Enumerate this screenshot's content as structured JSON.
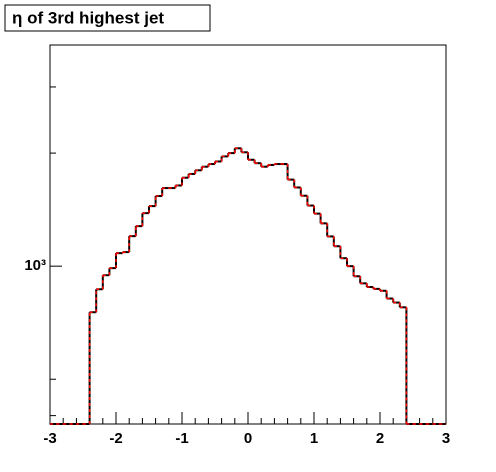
{
  "chart_data": {
    "type": "histogram",
    "title": "η of 3rd highest jet",
    "bins": [
      -3.0,
      -2.9,
      -2.8,
      -2.7,
      -2.6,
      -2.5,
      -2.4,
      -2.3,
      -2.2,
      -2.1,
      -2.0,
      -1.9,
      -1.8,
      -1.7,
      -1.6,
      -1.5,
      -1.4,
      -1.3,
      -1.2,
      -1.1,
      -1.0,
      -0.9,
      -0.8,
      -0.7,
      -0.6,
      -0.5,
      -0.4,
      -0.3,
      -0.2,
      -0.1,
      0.0,
      0.1,
      0.2,
      0.3,
      0.4,
      0.5,
      0.6,
      0.7,
      0.8,
      0.9,
      1.0,
      1.1,
      1.2,
      1.3,
      1.4,
      1.5,
      1.6,
      1.7,
      1.8,
      1.9,
      2.0,
      2.1,
      2.2,
      2.3,
      2.4,
      2.5,
      2.6,
      2.7,
      2.8,
      2.9,
      3.0
    ],
    "values": [
      0,
      0,
      0,
      0,
      0,
      0,
      754,
      868,
      946,
      988,
      1083,
      1090,
      1202,
      1278,
      1384,
      1445,
      1537,
      1614,
      1614,
      1640,
      1720,
      1760,
      1800,
      1840,
      1870,
      1900,
      1960,
      2000,
      2060,
      2010,
      1920,
      1880,
      1840,
      1860,
      1870,
      1870,
      1700,
      1620,
      1540,
      1450,
      1380,
      1300,
      1200,
      1130,
      1050,
      1000,
      940,
      900,
      880,
      870,
      860,
      820,
      800,
      777,
      0,
      0,
      0,
      0,
      0,
      0
    ],
    "color": "#000000",
    "dash_color": "#ff0000",
    "xlim": [
      -3,
      3
    ],
    "xticks": [
      -3,
      -2,
      -1,
      0,
      1,
      2,
      3
    ],
    "ylim": [
      380,
      3880
    ],
    "log_y": true,
    "yticks": [
      {
        "value": 1000,
        "label": "10³"
      }
    ],
    "yminorticks": [
      400,
      500,
      2000,
      3000
    ]
  }
}
